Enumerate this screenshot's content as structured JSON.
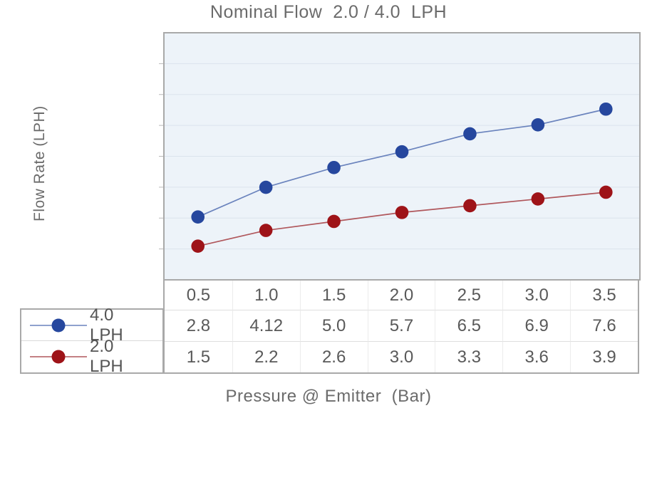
{
  "page": {
    "background": "#ffffff"
  },
  "chart_data": {
    "type": "line",
    "title": "Nominal Flow  2.0 / 4.0  LPH",
    "xlabel": "Pressure @ Emitter  (Bar)",
    "ylabel": "Flow Rate (LPH)",
    "x": [
      0.5,
      1.0,
      1.5,
      2.0,
      2.5,
      3.0,
      3.5
    ],
    "series": [
      {
        "name": "4.0 LPH",
        "values": [
          2.8,
          4.12,
          5.0,
          5.7,
          6.5,
          6.9,
          7.6
        ],
        "marker_color": "#26479e",
        "line_color": "#6a83bd"
      },
      {
        "name": "2.0 LPH",
        "values": [
          1.5,
          2.2,
          2.6,
          3.0,
          3.3,
          3.6,
          3.9
        ],
        "marker_color": "#9e1318",
        "line_color": "#b0575c"
      }
    ],
    "ylim": [
      0,
      11
    ],
    "grid": "horizontal",
    "gridline_count": 7,
    "legend_position": "bottom-left",
    "plot_bg_color": "#edf3f9",
    "gridline_color": "#dbe3ed",
    "border_color": "#a9a9a9",
    "tick_color": "#b8b8b8"
  },
  "table": {
    "header": [
      "0.5",
      "1.0",
      "1.5",
      "2.0",
      "2.5",
      "3.0",
      "3.5"
    ],
    "rows": [
      {
        "label": "4.0 LPH",
        "cells": [
          "2.8",
          "4.12",
          "5.0",
          "5.7",
          "6.5",
          "6.9",
          "7.6"
        ]
      },
      {
        "label": "2.0 LPH",
        "cells": [
          "1.5",
          "2.2",
          "2.6",
          "3.0",
          "3.3",
          "3.6",
          "3.9"
        ]
      }
    ]
  }
}
